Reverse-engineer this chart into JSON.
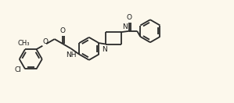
{
  "bg_color": "#fcf8ec",
  "bond_color": "#2a2a2a",
  "text_color": "#1a1a1a",
  "line_width": 1.3,
  "font_size": 6.5,
  "figsize": [
    2.99,
    1.32
  ],
  "dpi": 100,
  "xlim": [
    0,
    10.5
  ],
  "ylim": [
    0,
    4.4
  ]
}
